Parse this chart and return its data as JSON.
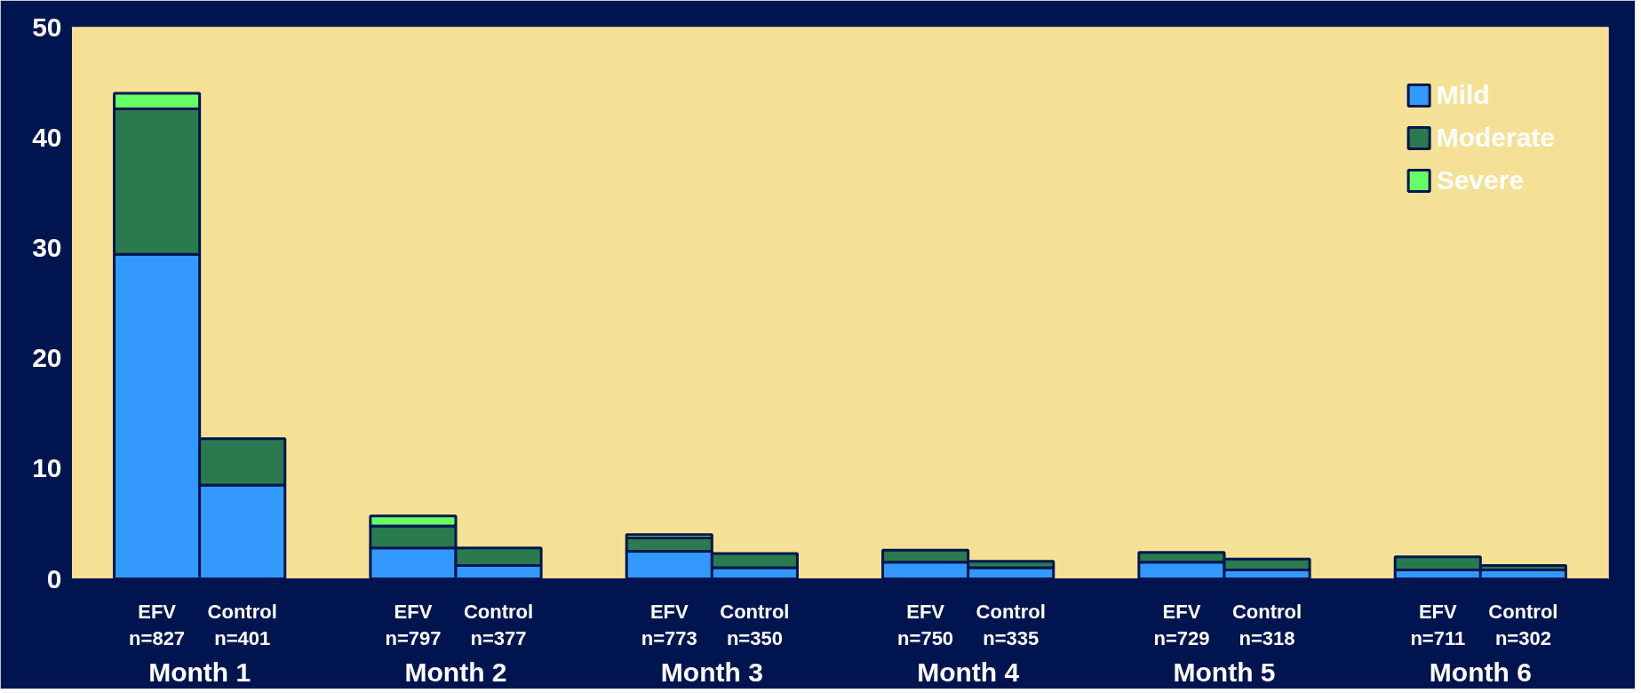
{
  "chart_data": {
    "type": "bar",
    "stacked": true,
    "categories": [
      "EFV\nn=827",
      "Control\nn=401",
      "EFV\nn=797",
      "Control\nn=377",
      "EFV\nn=773",
      "Control\nn=350",
      "EFV\nn=750",
      "Control\nn=335",
      "EFV\nn=729",
      "Control\nn=318",
      "EFV\nn=711",
      "Control\nn=302"
    ],
    "annotations": [
      "Month 1",
      "Month 2",
      "Month 3",
      "Month 4",
      "Month 5",
      "Month 6"
    ],
    "series": [
      {
        "name": "Mild",
        "color": "#3399ff",
        "values": [
          29.4,
          8.5,
          2.8,
          1.2,
          2.5,
          1.0,
          1.5,
          1.0,
          1.5,
          0.8,
          0.8,
          0.8
        ]
      },
      {
        "name": "Moderate",
        "color": "#2a7a50",
        "values": [
          13.2,
          4.2,
          2.0,
          1.6,
          1.2,
          1.3,
          1.1,
          0.6,
          0.9,
          1.0,
          1.2,
          0.4
        ]
      },
      {
        "name": "Severe",
        "color": "#66ff66",
        "values": [
          1.4,
          null,
          0.9,
          null,
          0.3,
          null,
          null,
          null,
          null,
          null,
          null,
          null
        ]
      }
    ],
    "ylim": [
      0,
      50
    ],
    "yticks": [
      0,
      10,
      20,
      30,
      40,
      50
    ],
    "grid": false,
    "legend": "top right"
  }
}
